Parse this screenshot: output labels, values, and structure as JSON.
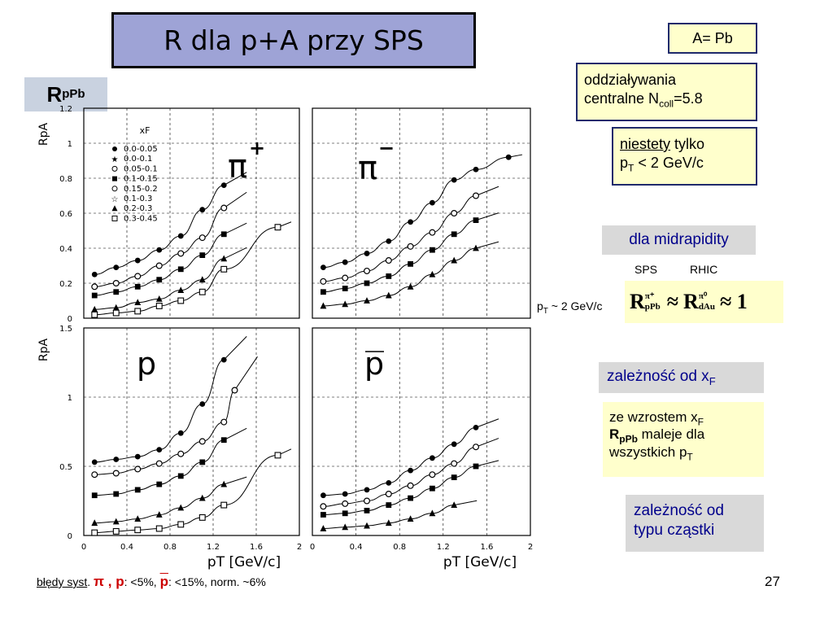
{
  "title": "R  dla p+A przy SPS",
  "rppb_label": "R",
  "rppb_sub": "pPb",
  "a_pb": "A= Pb",
  "central": {
    "line1": "oddziaływania",
    "line2a": "centralne N",
    "line2sub": "coll",
    "line2b": "=5.8"
  },
  "unfortunately": {
    "word": "niestety",
    "rest": " tylko",
    "line2a": "p",
    "line2sub": "T",
    "line2b": " < 2 GeV/c"
  },
  "midrapidity": "dla midrapidity",
  "sps": "SPS",
  "rhic": "RHIC",
  "pt_cond": "p",
  "pt_cond_sub": "T",
  "pt_cond_rest": " ~ 2 GeV/c",
  "eq": {
    "r1": "R",
    "r1_sup": "π⁺",
    "r1_sub": "pPb",
    "approx1": "≈",
    "r2": "R",
    "r2_sup": "π⁰",
    "r2_sub": "dAu",
    "approx2": "≈ 1"
  },
  "xf_dep": {
    "text": "zależność od x",
    "sub": "F"
  },
  "xf_note": {
    "a": "ze wzrostem x",
    "a_sub": "F",
    "b": "R",
    "b_sub": "pPb",
    "b_rest": " maleje dla",
    "c": "wszystkich p",
    "c_sub": "T"
  },
  "type_dep": {
    "line1": "zależność od",
    "line2": "typu cząstki"
  },
  "footer": {
    "a": "błędy syst",
    "b": ".  ",
    "pi": "π",
    "comma": " , ",
    "p": "p",
    "c": ": <5%, ",
    "pbar": "p",
    "d": ": <15%,   norm. ~6%"
  },
  "page_number": "27",
  "chart_data": [
    {
      "type": "scatter",
      "panel": "π+",
      "ylabel": "R_pA",
      "xlabel": "",
      "xlim": [
        0,
        2
      ],
      "ylim": [
        0,
        1.2
      ],
      "yticks": [
        "0",
        "0.2",
        "0.4",
        "0.6",
        "0.8",
        "1",
        "1.2"
      ],
      "legend_title": "x_F",
      "legend": [
        "0.0-0.05",
        "0.0-0.1",
        "0.05-0.1",
        "0.1-0.15",
        "0.15-0.2",
        "0.1-0.3",
        "0.2-0.3",
        "0.3-0.45"
      ],
      "series": [
        {
          "marker": "circle-filled",
          "x": [
            0.1,
            0.3,
            0.5,
            0.7,
            0.9,
            1.1,
            1.3
          ],
          "y": [
            0.25,
            0.29,
            0.33,
            0.39,
            0.47,
            0.62,
            0.76
          ]
        },
        {
          "marker": "circle-open",
          "x": [
            0.1,
            0.3,
            0.5,
            0.7,
            0.9,
            1.1,
            1.3
          ],
          "y": [
            0.18,
            0.2,
            0.24,
            0.3,
            0.37,
            0.46,
            0.63
          ]
        },
        {
          "marker": "square-filled",
          "x": [
            0.1,
            0.3,
            0.5,
            0.7,
            0.9,
            1.1,
            1.3
          ],
          "y": [
            0.13,
            0.15,
            0.18,
            0.22,
            0.28,
            0.36,
            0.48
          ]
        },
        {
          "marker": "triangle-filled",
          "x": [
            0.1,
            0.3,
            0.5,
            0.7,
            0.9,
            1.1,
            1.3
          ],
          "y": [
            0.05,
            0.06,
            0.09,
            0.11,
            0.16,
            0.22,
            0.34
          ]
        },
        {
          "marker": "square-open",
          "x": [
            0.1,
            0.3,
            0.5,
            0.7,
            0.9,
            1.1,
            1.3,
            1.8
          ],
          "y": [
            0.02,
            0.03,
            0.04,
            0.07,
            0.1,
            0.15,
            0.28,
            0.52
          ]
        }
      ]
    },
    {
      "type": "scatter",
      "panel": "π-",
      "xlim": [
        0,
        2
      ],
      "ylim": [
        0,
        1.2
      ],
      "series": [
        {
          "marker": "circle-filled",
          "x": [
            0.1,
            0.3,
            0.5,
            0.7,
            0.9,
            1.1,
            1.3,
            1.5,
            1.8
          ],
          "y": [
            0.29,
            0.32,
            0.37,
            0.44,
            0.55,
            0.66,
            0.79,
            0.85,
            0.92
          ]
        },
        {
          "marker": "circle-open",
          "x": [
            0.1,
            0.3,
            0.5,
            0.7,
            0.9,
            1.1,
            1.3,
            1.5
          ],
          "y": [
            0.21,
            0.23,
            0.27,
            0.33,
            0.41,
            0.49,
            0.6,
            0.7
          ]
        },
        {
          "marker": "square-filled",
          "x": [
            0.1,
            0.3,
            0.5,
            0.7,
            0.9,
            1.1,
            1.3,
            1.5
          ],
          "y": [
            0.15,
            0.17,
            0.2,
            0.24,
            0.31,
            0.39,
            0.48,
            0.56
          ]
        },
        {
          "marker": "triangle-filled",
          "x": [
            0.1,
            0.3,
            0.5,
            0.7,
            0.9,
            1.1,
            1.3,
            1.5
          ],
          "y": [
            0.07,
            0.08,
            0.1,
            0.13,
            0.18,
            0.25,
            0.33,
            0.4
          ]
        }
      ]
    },
    {
      "type": "scatter",
      "panel": "p",
      "ylabel": "R_pA",
      "xlabel": "p_T  [GeV/c]",
      "xlim": [
        0,
        2
      ],
      "ylim": [
        0,
        1.5
      ],
      "xticks": [
        "0",
        "0.4",
        "0.8",
        "1.2",
        "1.6",
        "2"
      ],
      "yticks": [
        "0",
        "0.5",
        "1",
        "1.5"
      ],
      "series": [
        {
          "marker": "circle-filled",
          "x": [
            0.1,
            0.3,
            0.5,
            0.7,
            0.9,
            1.1,
            1.3
          ],
          "y": [
            0.53,
            0.55,
            0.57,
            0.62,
            0.74,
            0.95,
            1.27
          ]
        },
        {
          "marker": "circle-open",
          "x": [
            0.1,
            0.3,
            0.5,
            0.7,
            0.9,
            1.1,
            1.3,
            1.4
          ],
          "y": [
            0.44,
            0.45,
            0.48,
            0.52,
            0.59,
            0.68,
            0.82,
            1.05
          ]
        },
        {
          "marker": "square-filled",
          "x": [
            0.1,
            0.3,
            0.5,
            0.7,
            0.9,
            1.1,
            1.3
          ],
          "y": [
            0.29,
            0.3,
            0.33,
            0.37,
            0.43,
            0.53,
            0.69
          ]
        },
        {
          "marker": "triangle-filled",
          "x": [
            0.1,
            0.3,
            0.5,
            0.7,
            0.9,
            1.1,
            1.3
          ],
          "y": [
            0.09,
            0.1,
            0.12,
            0.15,
            0.2,
            0.27,
            0.37
          ]
        },
        {
          "marker": "square-open",
          "x": [
            0.1,
            0.3,
            0.5,
            0.7,
            0.9,
            1.1,
            1.3,
            1.8
          ],
          "y": [
            0.02,
            0.03,
            0.04,
            0.05,
            0.08,
            0.13,
            0.22,
            0.58
          ]
        }
      ]
    },
    {
      "type": "scatter",
      "panel": "p̄",
      "xlabel": "p_T  [GeV/c]",
      "xlim": [
        0,
        2
      ],
      "ylim": [
        0,
        1.5
      ],
      "xticks": [
        "0",
        "0.4",
        "0.8",
        "1.2",
        "1.6",
        "2"
      ],
      "series": [
        {
          "marker": "circle-filled",
          "x": [
            0.1,
            0.3,
            0.5,
            0.7,
            0.9,
            1.1,
            1.3,
            1.5
          ],
          "y": [
            0.29,
            0.3,
            0.33,
            0.38,
            0.47,
            0.56,
            0.66,
            0.78
          ]
        },
        {
          "marker": "circle-open",
          "x": [
            0.1,
            0.3,
            0.5,
            0.7,
            0.9,
            1.1,
            1.3,
            1.5
          ],
          "y": [
            0.21,
            0.23,
            0.25,
            0.3,
            0.36,
            0.44,
            0.52,
            0.64
          ]
        },
        {
          "marker": "square-filled",
          "x": [
            0.1,
            0.3,
            0.5,
            0.7,
            0.9,
            1.1,
            1.3,
            1.5
          ],
          "y": [
            0.15,
            0.16,
            0.18,
            0.22,
            0.27,
            0.34,
            0.42,
            0.5
          ]
        },
        {
          "marker": "triangle-filled",
          "x": [
            0.1,
            0.3,
            0.5,
            0.7,
            0.9,
            1.1,
            1.3
          ],
          "y": [
            0.05,
            0.06,
            0.07,
            0.09,
            0.12,
            0.16,
            0.22
          ]
        }
      ]
    }
  ]
}
